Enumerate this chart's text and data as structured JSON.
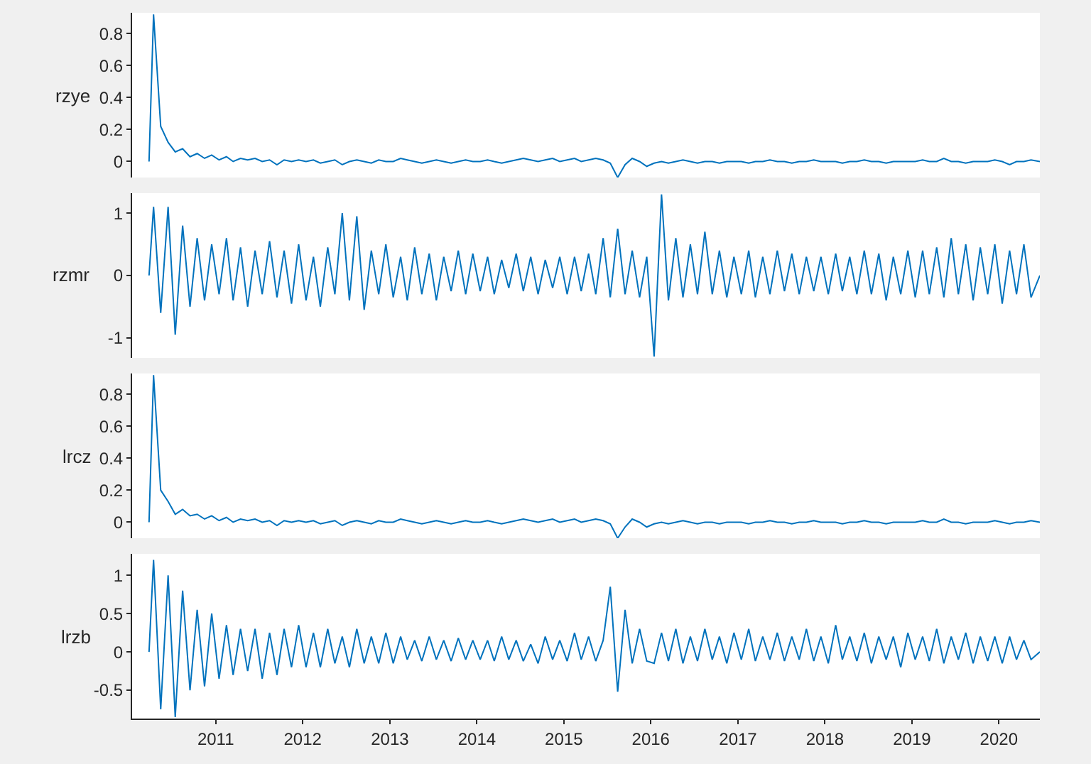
{
  "chart_data": [
    {
      "type": "line",
      "ylabel": "rzye",
      "color": "#0072bd",
      "tick_labels": "y",
      "grid": false,
      "xlim": [
        "2010-01-15",
        "2020-06-21"
      ],
      "xticks": [
        "2011",
        "2012",
        "2013",
        "2014",
        "2015",
        "2016",
        "2017",
        "2018",
        "2019",
        "2020"
      ],
      "ylim": [
        -0.1,
        0.93
      ],
      "yticks": [
        0,
        0.2,
        0.4,
        0.6,
        0.8
      ],
      "x": [
        "2010-03-27",
        "2010-04-15",
        "2010-05-15",
        "2010-06-15",
        "2010-07-15",
        "2010-08-15",
        "2010-09-15",
        "2010-10-15",
        "2010-11-15",
        "2010-12-15",
        "2011-01-15",
        "2011-02-15",
        "2011-03-15",
        "2011-04-15",
        "2011-05-15",
        "2011-06-15",
        "2011-07-15",
        "2011-08-15",
        "2011-09-15",
        "2011-10-15",
        "2011-11-15",
        "2011-12-15",
        "2012-01-15",
        "2012-02-15",
        "2012-03-15",
        "2012-04-15",
        "2012-05-15",
        "2012-06-15",
        "2012-07-15",
        "2012-08-15",
        "2012-09-15",
        "2012-10-15",
        "2012-11-15",
        "2012-12-15",
        "2013-01-15",
        "2013-02-15",
        "2013-03-15",
        "2013-04-15",
        "2013-05-15",
        "2013-06-15",
        "2013-07-15",
        "2013-08-15",
        "2013-09-15",
        "2013-10-15",
        "2013-11-15",
        "2013-12-15",
        "2014-01-15",
        "2014-02-15",
        "2014-03-15",
        "2014-04-15",
        "2014-05-15",
        "2014-06-15",
        "2014-07-15",
        "2014-08-15",
        "2014-09-15",
        "2014-10-15",
        "2014-11-15",
        "2014-12-15",
        "2015-01-15",
        "2015-02-15",
        "2015-03-15",
        "2015-04-15",
        "2015-05-15",
        "2015-06-15",
        "2015-07-15",
        "2015-08-15",
        "2015-09-15",
        "2015-10-15",
        "2015-11-15",
        "2015-12-15",
        "2016-01-15",
        "2016-02-15",
        "2016-03-15",
        "2016-04-15",
        "2016-05-15",
        "2016-06-15",
        "2016-07-15",
        "2016-08-15",
        "2016-09-15",
        "2016-10-15",
        "2016-11-15",
        "2016-12-15",
        "2017-01-15",
        "2017-02-15",
        "2017-03-15",
        "2017-04-15",
        "2017-05-15",
        "2017-06-15",
        "2017-07-15",
        "2017-08-15",
        "2017-09-15",
        "2017-10-15",
        "2017-11-15",
        "2017-12-15",
        "2018-01-15",
        "2018-02-15",
        "2018-03-15",
        "2018-04-15",
        "2018-05-15",
        "2018-06-15",
        "2018-07-15",
        "2018-08-15",
        "2018-09-15",
        "2018-10-15",
        "2018-11-15",
        "2018-12-15",
        "2019-01-15",
        "2019-02-15",
        "2019-03-15",
        "2019-04-15",
        "2019-05-15",
        "2019-06-15",
        "2019-07-15",
        "2019-08-15",
        "2019-09-15",
        "2019-10-15",
        "2019-11-15",
        "2019-12-15",
        "2020-01-15",
        "2020-02-15",
        "2020-03-15",
        "2020-04-15",
        "2020-05-15",
        "2020-06-21"
      ],
      "values": [
        0.0,
        0.92,
        0.22,
        0.12,
        0.06,
        0.08,
        0.03,
        0.05,
        0.02,
        0.04,
        0.01,
        0.03,
        0.0,
        0.02,
        0.01,
        0.02,
        0.0,
        0.01,
        -0.02,
        0.01,
        0.0,
        0.01,
        0.0,
        0.01,
        -0.01,
        0.0,
        0.01,
        -0.02,
        0.0,
        0.01,
        0.0,
        -0.01,
        0.01,
        0.0,
        0.0,
        0.02,
        0.01,
        0.0,
        -0.01,
        0.0,
        0.01,
        0.0,
        -0.01,
        0.0,
        0.01,
        0.0,
        0.0,
        0.01,
        0.0,
        -0.01,
        0.0,
        0.01,
        0.02,
        0.01,
        0.0,
        0.01,
        0.02,
        0.0,
        0.01,
        0.02,
        0.0,
        0.01,
        0.02,
        0.01,
        -0.01,
        -0.1,
        -0.02,
        0.02,
        0.0,
        -0.03,
        -0.01,
        0.0,
        -0.01,
        0.0,
        0.01,
        0.0,
        -0.01,
        0.0,
        0.0,
        -0.01,
        0.0,
        0.0,
        0.0,
        -0.01,
        0.0,
        0.0,
        0.01,
        0.0,
        0.0,
        -0.01,
        0.0,
        0.0,
        0.01,
        0.0,
        0.0,
        0.0,
        -0.01,
        0.0,
        0.0,
        0.01,
        0.0,
        0.0,
        -0.01,
        0.0,
        0.0,
        0.0,
        0.0,
        0.01,
        0.0,
        0.0,
        0.02,
        0.0,
        0.0,
        -0.01,
        0.0,
        0.0,
        0.0,
        0.01,
        0.0,
        -0.02,
        0.0,
        0.0,
        0.01,
        0.0
      ]
    },
    {
      "type": "line",
      "ylabel": "rzmr",
      "color": "#0072bd",
      "tick_labels": "y",
      "grid": false,
      "xlim": [
        "2010-01-15",
        "2020-06-21"
      ],
      "xticks": [
        "2011",
        "2012",
        "2013",
        "2014",
        "2015",
        "2016",
        "2017",
        "2018",
        "2019",
        "2020"
      ],
      "ylim": [
        -1.32,
        1.32
      ],
      "yticks": [
        -1,
        0,
        1
      ],
      "x": [
        "2010-03-27",
        "2010-04-15",
        "2010-05-15",
        "2010-06-15",
        "2010-07-15",
        "2010-08-15",
        "2010-09-15",
        "2010-10-15",
        "2010-11-15",
        "2010-12-15",
        "2011-01-15",
        "2011-02-15",
        "2011-03-15",
        "2011-04-15",
        "2011-05-15",
        "2011-06-15",
        "2011-07-15",
        "2011-08-15",
        "2011-09-15",
        "2011-10-15",
        "2011-11-15",
        "2011-12-15",
        "2012-01-15",
        "2012-02-15",
        "2012-03-15",
        "2012-04-15",
        "2012-05-15",
        "2012-06-15",
        "2012-07-15",
        "2012-08-15",
        "2012-09-15",
        "2012-10-15",
        "2012-11-15",
        "2012-12-15",
        "2013-01-15",
        "2013-02-15",
        "2013-03-15",
        "2013-04-15",
        "2013-05-15",
        "2013-06-15",
        "2013-07-15",
        "2013-08-15",
        "2013-09-15",
        "2013-10-15",
        "2013-11-15",
        "2013-12-15",
        "2014-01-15",
        "2014-02-15",
        "2014-03-15",
        "2014-04-15",
        "2014-05-15",
        "2014-06-15",
        "2014-07-15",
        "2014-08-15",
        "2014-09-15",
        "2014-10-15",
        "2014-11-15",
        "2014-12-15",
        "2015-01-15",
        "2015-02-15",
        "2015-03-15",
        "2015-04-15",
        "2015-05-15",
        "2015-06-15",
        "2015-07-15",
        "2015-08-15",
        "2015-09-15",
        "2015-10-15",
        "2015-11-15",
        "2015-12-15",
        "2016-01-15",
        "2016-02-15",
        "2016-03-15",
        "2016-04-15",
        "2016-05-15",
        "2016-06-15",
        "2016-07-15",
        "2016-08-15",
        "2016-09-15",
        "2016-10-15",
        "2016-11-15",
        "2016-12-15",
        "2017-01-15",
        "2017-02-15",
        "2017-03-15",
        "2017-04-15",
        "2017-05-15",
        "2017-06-15",
        "2017-07-15",
        "2017-08-15",
        "2017-09-15",
        "2017-10-15",
        "2017-11-15",
        "2017-12-15",
        "2018-01-15",
        "2018-02-15",
        "2018-03-15",
        "2018-04-15",
        "2018-05-15",
        "2018-06-15",
        "2018-07-15",
        "2018-08-15",
        "2018-09-15",
        "2018-10-15",
        "2018-11-15",
        "2018-12-15",
        "2019-01-15",
        "2019-02-15",
        "2019-03-15",
        "2019-04-15",
        "2019-05-15",
        "2019-06-15",
        "2019-07-15",
        "2019-08-15",
        "2019-09-15",
        "2019-10-15",
        "2019-11-15",
        "2019-12-15",
        "2020-01-15",
        "2020-02-15",
        "2020-03-15",
        "2020-04-15",
        "2020-05-15",
        "2020-06-21"
      ],
      "values": [
        0.0,
        1.1,
        -0.6,
        1.1,
        -0.95,
        0.8,
        -0.5,
        0.6,
        -0.4,
        0.5,
        -0.3,
        0.6,
        -0.4,
        0.45,
        -0.5,
        0.4,
        -0.3,
        0.55,
        -0.35,
        0.4,
        -0.45,
        0.5,
        -0.4,
        0.3,
        -0.5,
        0.45,
        -0.3,
        1.0,
        -0.4,
        0.95,
        -0.55,
        0.4,
        -0.3,
        0.5,
        -0.35,
        0.3,
        -0.4,
        0.45,
        -0.3,
        0.35,
        -0.4,
        0.3,
        -0.25,
        0.4,
        -0.3,
        0.35,
        -0.25,
        0.3,
        -0.3,
        0.25,
        -0.2,
        0.35,
        -0.25,
        0.3,
        -0.3,
        0.25,
        -0.2,
        0.3,
        -0.3,
        0.3,
        -0.25,
        0.35,
        -0.3,
        0.6,
        -0.35,
        0.75,
        -0.3,
        0.4,
        -0.35,
        0.3,
        -1.3,
        1.3,
        -0.4,
        0.6,
        -0.35,
        0.5,
        -0.3,
        0.7,
        -0.3,
        0.4,
        -0.35,
        0.3,
        -0.3,
        0.4,
        -0.35,
        0.3,
        -0.3,
        0.4,
        -0.25,
        0.35,
        -0.3,
        0.3,
        -0.25,
        0.3,
        -0.3,
        0.35,
        -0.25,
        0.3,
        -0.3,
        0.4,
        -0.3,
        0.35,
        -0.4,
        0.3,
        -0.3,
        0.4,
        -0.35,
        0.4,
        -0.3,
        0.45,
        -0.35,
        0.6,
        -0.3,
        0.5,
        -0.4,
        0.45,
        -0.3,
        0.5,
        -0.45,
        0.4,
        -0.3,
        0.5,
        -0.35,
        0.0
      ]
    },
    {
      "type": "line",
      "ylabel": "lrcz",
      "color": "#0072bd",
      "tick_labels": "y",
      "grid": false,
      "xlim": [
        "2010-01-15",
        "2020-06-21"
      ],
      "xticks": [
        "2011",
        "2012",
        "2013",
        "2014",
        "2015",
        "2016",
        "2017",
        "2018",
        "2019",
        "2020"
      ],
      "ylim": [
        -0.1,
        0.93
      ],
      "yticks": [
        0,
        0.2,
        0.4,
        0.6,
        0.8
      ],
      "x": [
        "2010-03-27",
        "2010-04-15",
        "2010-05-15",
        "2010-06-15",
        "2010-07-15",
        "2010-08-15",
        "2010-09-15",
        "2010-10-15",
        "2010-11-15",
        "2010-12-15",
        "2011-01-15",
        "2011-02-15",
        "2011-03-15",
        "2011-04-15",
        "2011-05-15",
        "2011-06-15",
        "2011-07-15",
        "2011-08-15",
        "2011-09-15",
        "2011-10-15",
        "2011-11-15",
        "2011-12-15",
        "2012-01-15",
        "2012-02-15",
        "2012-03-15",
        "2012-04-15",
        "2012-05-15",
        "2012-06-15",
        "2012-07-15",
        "2012-08-15",
        "2012-09-15",
        "2012-10-15",
        "2012-11-15",
        "2012-12-15",
        "2013-01-15",
        "2013-02-15",
        "2013-03-15",
        "2013-04-15",
        "2013-05-15",
        "2013-06-15",
        "2013-07-15",
        "2013-08-15",
        "2013-09-15",
        "2013-10-15",
        "2013-11-15",
        "2013-12-15",
        "2014-01-15",
        "2014-02-15",
        "2014-03-15",
        "2014-04-15",
        "2014-05-15",
        "2014-06-15",
        "2014-07-15",
        "2014-08-15",
        "2014-09-15",
        "2014-10-15",
        "2014-11-15",
        "2014-12-15",
        "2015-01-15",
        "2015-02-15",
        "2015-03-15",
        "2015-04-15",
        "2015-05-15",
        "2015-06-15",
        "2015-07-15",
        "2015-08-15",
        "2015-09-15",
        "2015-10-15",
        "2015-11-15",
        "2015-12-15",
        "2016-01-15",
        "2016-02-15",
        "2016-03-15",
        "2016-04-15",
        "2016-05-15",
        "2016-06-15",
        "2016-07-15",
        "2016-08-15",
        "2016-09-15",
        "2016-10-15",
        "2016-11-15",
        "2016-12-15",
        "2017-01-15",
        "2017-02-15",
        "2017-03-15",
        "2017-04-15",
        "2017-05-15",
        "2017-06-15",
        "2017-07-15",
        "2017-08-15",
        "2017-09-15",
        "2017-10-15",
        "2017-11-15",
        "2017-12-15",
        "2018-01-15",
        "2018-02-15",
        "2018-03-15",
        "2018-04-15",
        "2018-05-15",
        "2018-06-15",
        "2018-07-15",
        "2018-08-15",
        "2018-09-15",
        "2018-10-15",
        "2018-11-15",
        "2018-12-15",
        "2019-01-15",
        "2019-02-15",
        "2019-03-15",
        "2019-04-15",
        "2019-05-15",
        "2019-06-15",
        "2019-07-15",
        "2019-08-15",
        "2019-09-15",
        "2019-10-15",
        "2019-11-15",
        "2019-12-15",
        "2020-01-15",
        "2020-02-15",
        "2020-03-15",
        "2020-04-15",
        "2020-05-15",
        "2020-06-21"
      ],
      "values": [
        0.0,
        0.92,
        0.2,
        0.13,
        0.05,
        0.08,
        0.04,
        0.05,
        0.02,
        0.04,
        0.01,
        0.03,
        0.0,
        0.02,
        0.01,
        0.02,
        0.0,
        0.01,
        -0.02,
        0.01,
        0.0,
        0.01,
        0.0,
        0.01,
        -0.01,
        0.0,
        0.01,
        -0.02,
        0.0,
        0.01,
        0.0,
        -0.01,
        0.01,
        0.0,
        0.0,
        0.02,
        0.01,
        0.0,
        -0.01,
        0.0,
        0.01,
        0.0,
        -0.01,
        0.0,
        0.01,
        0.0,
        0.0,
        0.01,
        0.0,
        -0.01,
        0.0,
        0.01,
        0.02,
        0.01,
        0.0,
        0.01,
        0.02,
        0.0,
        0.01,
        0.02,
        0.0,
        0.01,
        0.02,
        0.01,
        -0.01,
        -0.1,
        -0.03,
        0.02,
        0.0,
        -0.03,
        -0.01,
        0.0,
        -0.01,
        0.0,
        0.01,
        0.0,
        -0.01,
        0.0,
        0.0,
        -0.01,
        0.0,
        0.0,
        0.0,
        -0.01,
        0.0,
        0.0,
        0.01,
        0.0,
        0.0,
        -0.01,
        0.0,
        0.0,
        0.01,
        0.0,
        0.0,
        0.0,
        -0.01,
        0.0,
        0.0,
        0.01,
        0.0,
        0.0,
        -0.01,
        0.0,
        0.0,
        0.0,
        0.0,
        0.01,
        0.0,
        0.0,
        0.02,
        0.0,
        0.0,
        -0.01,
        0.0,
        0.0,
        0.0,
        0.01,
        0.0,
        -0.01,
        0.0,
        0.0,
        0.01,
        0.0
      ]
    },
    {
      "type": "line",
      "ylabel": "lrzb",
      "color": "#0072bd",
      "grid": false,
      "xlim": [
        "2010-01-15",
        "2020-06-21"
      ],
      "xticks": [
        "2011",
        "2012",
        "2013",
        "2014",
        "2015",
        "2016",
        "2017",
        "2018",
        "2019",
        "2020"
      ],
      "ylim": [
        -0.87,
        1.28
      ],
      "yticks": [
        -0.5,
        0,
        0.5,
        1
      ],
      "x": [
        "2010-03-27",
        "2010-04-15",
        "2010-05-15",
        "2010-06-15",
        "2010-07-15",
        "2010-08-15",
        "2010-09-15",
        "2010-10-15",
        "2010-11-15",
        "2010-12-15",
        "2011-01-15",
        "2011-02-15",
        "2011-03-15",
        "2011-04-15",
        "2011-05-15",
        "2011-06-15",
        "2011-07-15",
        "2011-08-15",
        "2011-09-15",
        "2011-10-15",
        "2011-11-15",
        "2011-12-15",
        "2012-01-15",
        "2012-02-15",
        "2012-03-15",
        "2012-04-15",
        "2012-05-15",
        "2012-06-15",
        "2012-07-15",
        "2012-08-15",
        "2012-09-15",
        "2012-10-15",
        "2012-11-15",
        "2012-12-15",
        "2013-01-15",
        "2013-02-15",
        "2013-03-15",
        "2013-04-15",
        "2013-05-15",
        "2013-06-15",
        "2013-07-15",
        "2013-08-15",
        "2013-09-15",
        "2013-10-15",
        "2013-11-15",
        "2013-12-15",
        "2014-01-15",
        "2014-02-15",
        "2014-03-15",
        "2014-04-15",
        "2014-05-15",
        "2014-06-15",
        "2014-07-15",
        "2014-08-15",
        "2014-09-15",
        "2014-10-15",
        "2014-11-15",
        "2014-12-15",
        "2015-01-15",
        "2015-02-15",
        "2015-03-15",
        "2015-04-15",
        "2015-05-15",
        "2015-06-15",
        "2015-07-15",
        "2015-08-15",
        "2015-09-15",
        "2015-10-15",
        "2015-11-15",
        "2015-12-15",
        "2016-01-15",
        "2016-02-15",
        "2016-03-15",
        "2016-04-15",
        "2016-05-15",
        "2016-06-15",
        "2016-07-15",
        "2016-08-15",
        "2016-09-15",
        "2016-10-15",
        "2016-11-15",
        "2016-12-15",
        "2017-01-15",
        "2017-02-15",
        "2017-03-15",
        "2017-04-15",
        "2017-05-15",
        "2017-06-15",
        "2017-07-15",
        "2017-08-15",
        "2017-09-15",
        "2017-10-15",
        "2017-11-15",
        "2017-12-15",
        "2018-01-15",
        "2018-02-15",
        "2018-03-15",
        "2018-04-15",
        "2018-05-15",
        "2018-06-15",
        "2018-07-15",
        "2018-08-15",
        "2018-09-15",
        "2018-10-15",
        "2018-11-15",
        "2018-12-15",
        "2019-01-15",
        "2019-02-15",
        "2019-03-15",
        "2019-04-15",
        "2019-05-15",
        "2019-06-15",
        "2019-07-15",
        "2019-08-15",
        "2019-09-15",
        "2019-10-15",
        "2019-11-15",
        "2019-12-15",
        "2020-01-15",
        "2020-02-15",
        "2020-03-15",
        "2020-04-15",
        "2020-05-15",
        "2020-06-21"
      ],
      "values": [
        0.0,
        1.2,
        -0.75,
        1.0,
        -0.85,
        0.8,
        -0.5,
        0.55,
        -0.45,
        0.5,
        -0.35,
        0.35,
        -0.3,
        0.3,
        -0.25,
        0.3,
        -0.35,
        0.25,
        -0.3,
        0.3,
        -0.2,
        0.35,
        -0.2,
        0.25,
        -0.2,
        0.3,
        -0.15,
        0.2,
        -0.2,
        0.3,
        -0.15,
        0.2,
        -0.15,
        0.25,
        -0.15,
        0.2,
        -0.1,
        0.15,
        -0.12,
        0.2,
        -0.1,
        0.15,
        -0.12,
        0.18,
        -0.1,
        0.15,
        -0.1,
        0.15,
        -0.12,
        0.2,
        -0.1,
        0.15,
        -0.12,
        0.1,
        -0.15,
        0.2,
        -0.1,
        0.15,
        -0.12,
        0.25,
        -0.1,
        0.2,
        -0.12,
        0.15,
        0.85,
        -0.52,
        0.55,
        -0.15,
        0.3,
        -0.12,
        -0.15,
        0.25,
        -0.12,
        0.3,
        -0.15,
        0.2,
        -0.12,
        0.3,
        -0.1,
        0.2,
        -0.15,
        0.25,
        -0.1,
        0.3,
        -0.12,
        0.2,
        -0.1,
        0.25,
        -0.12,
        0.2,
        -0.1,
        0.3,
        -0.12,
        0.2,
        -0.15,
        0.35,
        -0.1,
        0.2,
        -0.12,
        0.25,
        -0.15,
        0.2,
        -0.1,
        0.2,
        -0.2,
        0.25,
        -0.1,
        0.2,
        -0.12,
        0.3,
        -0.15,
        0.2,
        -0.1,
        0.25,
        -0.15,
        0.2,
        -0.12,
        0.2,
        -0.15,
        0.2,
        -0.1,
        0.15,
        -0.1,
        0.0
      ]
    }
  ]
}
